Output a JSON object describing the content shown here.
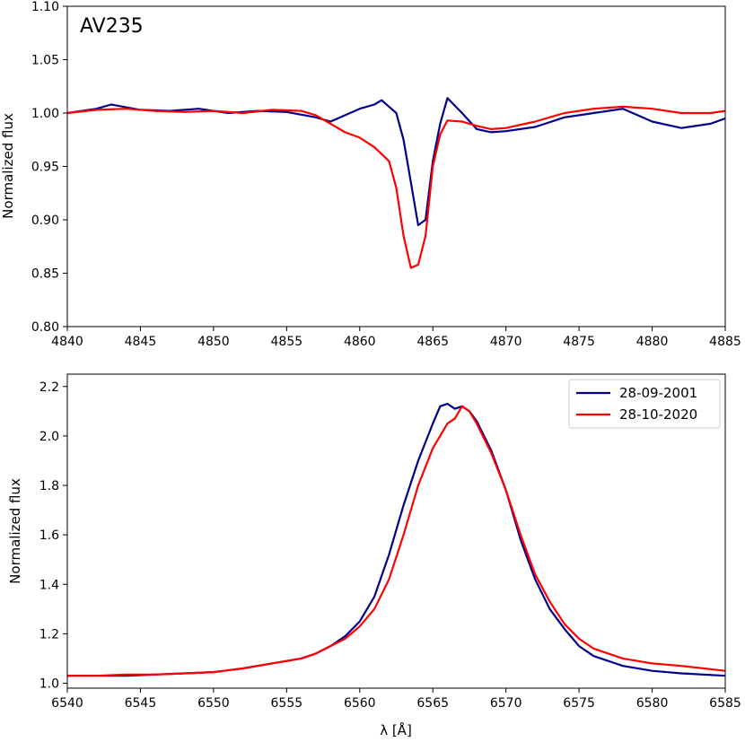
{
  "chart_data": [
    {
      "type": "line",
      "title": "",
      "annotation": "AV235",
      "xlabel": "",
      "ylabel": "Normalized flux",
      "xlim": [
        4840,
        4885
      ],
      "ylim": [
        0.8,
        1.1
      ],
      "xticks": [
        "4840",
        "4845",
        "4850",
        "4855",
        "4860",
        "4865",
        "4870",
        "4875",
        "4880",
        "4885"
      ],
      "yticks": [
        "0.80",
        "0.85",
        "0.90",
        "0.95",
        "1.00",
        "1.05",
        "1.10"
      ],
      "grid": false,
      "series": [
        {
          "color": "#00008B",
          "x": [
            4840,
            4842,
            4843,
            4845,
            4847,
            4849,
            4851,
            4853,
            4855,
            4857,
            4858,
            4859,
            4860,
            4861,
            4861.5,
            4862,
            4862.5,
            4863,
            4863.5,
            4864,
            4864.5,
            4865,
            4865.5,
            4866,
            4867,
            4868,
            4869,
            4870,
            4872,
            4874,
            4876,
            4878,
            4880,
            4882,
            4884,
            4885
          ],
          "y": [
            1.0,
            1.004,
            1.008,
            1.003,
            1.002,
            1.004,
            1.0,
            1.002,
            1.001,
            0.996,
            0.992,
            0.998,
            1.004,
            1.008,
            1.012,
            1.006,
            1.0,
            0.975,
            0.935,
            0.895,
            0.9,
            0.955,
            0.99,
            1.014,
            1.0,
            0.985,
            0.982,
            0.983,
            0.987,
            0.996,
            1.0,
            1.004,
            0.992,
            0.986,
            0.99,
            0.995
          ]
        },
        {
          "color": "#FF0000",
          "x": [
            4840,
            4842,
            4844,
            4846,
            4848,
            4850,
            4852,
            4854,
            4856,
            4857,
            4858,
            4859,
            4860,
            4861,
            4862,
            4862.5,
            4863,
            4863.5,
            4864,
            4864.5,
            4865,
            4865.5,
            4866,
            4867,
            4868,
            4869,
            4870,
            4872,
            4874,
            4876,
            4878,
            4880,
            4882,
            4884,
            4885
          ],
          "y": [
            1.0,
            1.003,
            1.004,
            1.002,
            1.001,
            1.002,
            1.0,
            1.003,
            1.002,
            0.998,
            0.99,
            0.982,
            0.977,
            0.968,
            0.955,
            0.93,
            0.885,
            0.855,
            0.858,
            0.885,
            0.95,
            0.98,
            0.993,
            0.992,
            0.988,
            0.985,
            0.986,
            0.992,
            1.0,
            1.004,
            1.006,
            1.004,
            1.0,
            1.0,
            1.002
          ]
        }
      ]
    },
    {
      "type": "line",
      "title": "",
      "xlabel": "λ [Å]",
      "ylabel": "Normalized flux",
      "xlim": [
        6540,
        6585
      ],
      "ylim": [
        0.98,
        2.25
      ],
      "xticks": [
        "6540",
        "6545",
        "6550",
        "6555",
        "6560",
        "6565",
        "6570",
        "6575",
        "6580",
        "6585"
      ],
      "yticks": [
        "1.0",
        "1.2",
        "1.4",
        "1.6",
        "1.8",
        "2.0",
        "2.2"
      ],
      "grid": false,
      "legend_position": "top-right",
      "series": [
        {
          "name": "28-09-2001",
          "color": "#00008B",
          "x": [
            6540,
            6542,
            6544,
            6546,
            6548,
            6550,
            6552,
            6554,
            6556,
            6557,
            6558,
            6559,
            6560,
            6561,
            6562,
            6563,
            6564,
            6565,
            6565.5,
            6566,
            6566.5,
            6567,
            6567.5,
            6568,
            6569,
            6570,
            6571,
            6572,
            6573,
            6574,
            6575,
            6576,
            6577,
            6578,
            6580,
            6582,
            6585
          ],
          "y": [
            1.03,
            1.03,
            1.03,
            1.035,
            1.04,
            1.045,
            1.06,
            1.08,
            1.1,
            1.12,
            1.15,
            1.19,
            1.25,
            1.35,
            1.52,
            1.72,
            1.9,
            2.05,
            2.12,
            2.13,
            2.11,
            2.12,
            2.1,
            2.06,
            1.94,
            1.78,
            1.58,
            1.42,
            1.3,
            1.22,
            1.15,
            1.11,
            1.09,
            1.07,
            1.05,
            1.04,
            1.03
          ]
        },
        {
          "name": "28-10-2020",
          "color": "#FF0000",
          "x": [
            6540,
            6542,
            6544,
            6546,
            6548,
            6550,
            6552,
            6554,
            6556,
            6557,
            6558,
            6559,
            6560,
            6561,
            6562,
            6563,
            6564,
            6565,
            6566,
            6566.5,
            6567,
            6567.5,
            6568,
            6569,
            6570,
            6571,
            6572,
            6573,
            6574,
            6575,
            6576,
            6577,
            6578,
            6580,
            6582,
            6585
          ],
          "y": [
            1.03,
            1.03,
            1.035,
            1.035,
            1.04,
            1.045,
            1.06,
            1.08,
            1.1,
            1.12,
            1.15,
            1.18,
            1.23,
            1.3,
            1.42,
            1.6,
            1.8,
            1.95,
            2.05,
            2.07,
            2.12,
            2.1,
            2.05,
            1.93,
            1.78,
            1.6,
            1.44,
            1.33,
            1.24,
            1.18,
            1.14,
            1.12,
            1.1,
            1.08,
            1.07,
            1.05
          ]
        }
      ]
    }
  ]
}
